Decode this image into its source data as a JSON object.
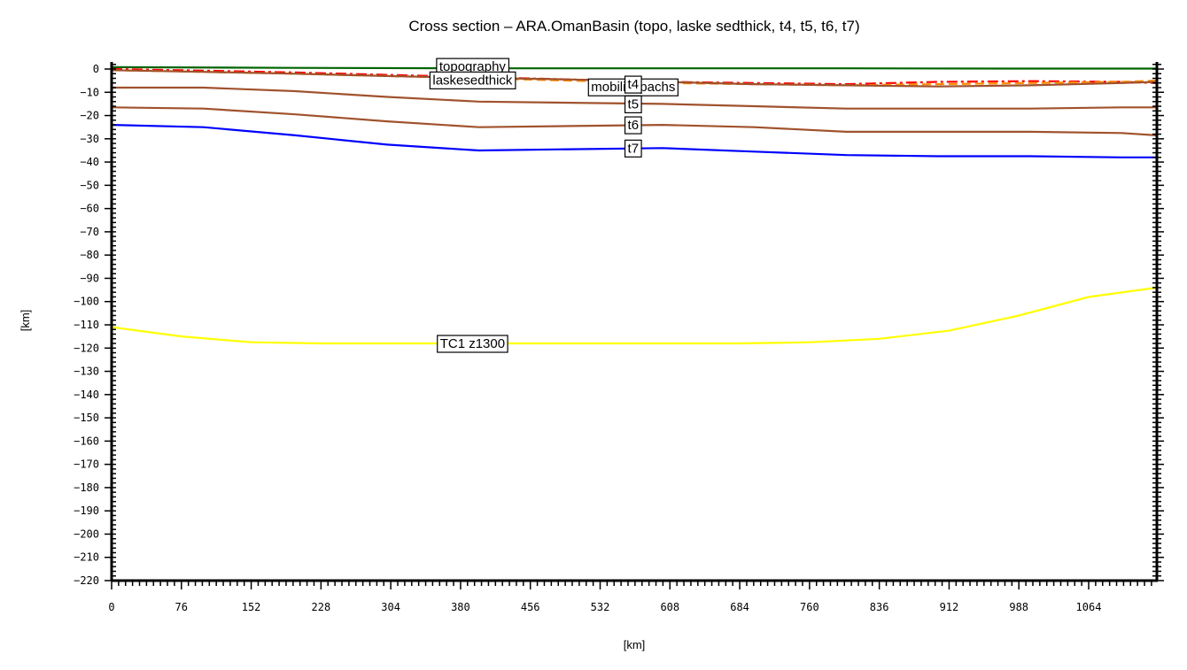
{
  "chart_data": {
    "type": "line",
    "title": "Cross section – ARA.OmanBasin (topo, laske sedthick, t4, t5, t6, t7)",
    "xlabel": "[km]",
    "ylabel": "[km]",
    "xlim": [
      0,
      1138
    ],
    "ylim": [
      -220,
      0
    ],
    "x_ticks": [
      0,
      76,
      152,
      228,
      304,
      380,
      456,
      532,
      608,
      684,
      760,
      836,
      912,
      988,
      1064
    ],
    "y_ticks": [
      0,
      -10,
      -20,
      -30,
      -40,
      -50,
      -60,
      -70,
      -80,
      -90,
      -100,
      -110,
      -120,
      -130,
      -140,
      -150,
      -160,
      -170,
      -180,
      -190,
      -200,
      -210,
      -220
    ],
    "grid": false,
    "series": [
      {
        "name": "topography",
        "color": "#006400",
        "style": "solid",
        "label_pos": {
          "x": 393,
          "y": 1.1
        },
        "x": [
          0,
          200,
          400,
          600,
          800,
          1000,
          1138
        ],
        "y": [
          0.8,
          0.5,
          0.3,
          0.3,
          0.3,
          0.2,
          0.2
        ]
      },
      {
        "name": "laskesedthick",
        "color": "#ff0000",
        "style": "dashdot",
        "label_pos": {
          "x": 393,
          "y": -4.7
        },
        "x": [
          0,
          100,
          200,
          300,
          400,
          500,
          600,
          700,
          800,
          900,
          1000,
          1100,
          1138
        ],
        "y": [
          0,
          -0.7,
          -1.5,
          -2.5,
          -3.5,
          -4.5,
          -5.5,
          -6.0,
          -6.5,
          -5.5,
          -5.2,
          -5.5,
          -6.0
        ]
      },
      {
        "name": "mobilisopachs",
        "color": "#ff8c00",
        "style": "dashed",
        "label_pos": {
          "x": 568,
          "y": -7.7
        },
        "x": [
          0,
          100,
          200,
          300,
          400,
          500,
          600,
          700,
          800,
          900,
          1000,
          1100,
          1138
        ],
        "y": [
          -0.5,
          -1.2,
          -2.0,
          -3.0,
          -4.0,
          -5.0,
          -6.0,
          -6.5,
          -7.0,
          -6.5,
          -6.0,
          -5.5,
          -5.0
        ]
      },
      {
        "name": "t4",
        "color": "#a0522d",
        "style": "solid",
        "label_pos": {
          "x": 568,
          "y": -6.5
        },
        "x": [
          0,
          100,
          200,
          300,
          400,
          500,
          600,
          700,
          800,
          900,
          1000,
          1100,
          1138
        ],
        "y": [
          -0.5,
          -1.2,
          -2.0,
          -3.0,
          -3.8,
          -4.5,
          -5.5,
          -6.5,
          -7.0,
          -7.5,
          -7.0,
          -6.0,
          -5.5
        ]
      },
      {
        "name": "t5",
        "color": "#a0522d",
        "style": "solid",
        "label_pos": {
          "x": 568,
          "y": -15.0
        },
        "x": [
          0,
          100,
          200,
          300,
          400,
          500,
          600,
          700,
          800,
          900,
          1000,
          1100,
          1138
        ],
        "y": [
          -8.0,
          -8.0,
          -9.5,
          -12.0,
          -14.0,
          -14.5,
          -15.0,
          -16.0,
          -17.0,
          -17.0,
          -17.0,
          -16.5,
          -16.5
        ]
      },
      {
        "name": "t6",
        "color": "#a0522d",
        "style": "solid",
        "label_pos": {
          "x": 568,
          "y": -24.0
        },
        "x": [
          0,
          100,
          200,
          300,
          400,
          500,
          600,
          700,
          800,
          900,
          1000,
          1100,
          1138
        ],
        "y": [
          -16.5,
          -17.0,
          -19.5,
          -22.5,
          -25.0,
          -24.5,
          -24.0,
          -25.0,
          -27.0,
          -27.0,
          -27.0,
          -27.5,
          -28.5
        ]
      },
      {
        "name": "t7",
        "color": "#0000ff",
        "style": "solid",
        "label_pos": {
          "x": 568,
          "y": -34.0
        },
        "x": [
          0,
          100,
          200,
          300,
          400,
          500,
          600,
          700,
          800,
          900,
          1000,
          1100,
          1138
        ],
        "y": [
          -24.0,
          -25.0,
          -28.5,
          -32.5,
          -35.0,
          -34.5,
          -34.0,
          -35.5,
          -37.0,
          -37.5,
          -37.5,
          -38.0,
          -38.0
        ]
      },
      {
        "name": "TC1_z1300",
        "color": "#ffff00",
        "style": "solid",
        "label_pos": {
          "x": 393,
          "y": -118.0
        },
        "x": [
          0,
          76,
          152,
          228,
          304,
          380,
          456,
          532,
          608,
          684,
          760,
          836,
          912,
          988,
          1064,
          1138
        ],
        "y": [
          -111.0,
          -115.0,
          -117.5,
          -118.0,
          -118.0,
          -118.0,
          -118.0,
          -118.0,
          -118.0,
          -118.0,
          -117.5,
          -116.0,
          -112.5,
          -106.0,
          -98.0,
          -94.0
        ]
      }
    ],
    "annotations": [
      "topography",
      "laskesedthick",
      "mobilisopachs",
      "t4",
      "t5",
      "t6",
      "t7",
      "TC1_z1300"
    ],
    "legend_position": "inline-labels"
  },
  "labels": {
    "title": "Cross section – ARA.OmanBasin (topo, laske sedthick, t4, t5, t6, t7)",
    "xlabel": "[km]",
    "ylabel": "[km]",
    "tc1_label": "TC1_z1300"
  }
}
